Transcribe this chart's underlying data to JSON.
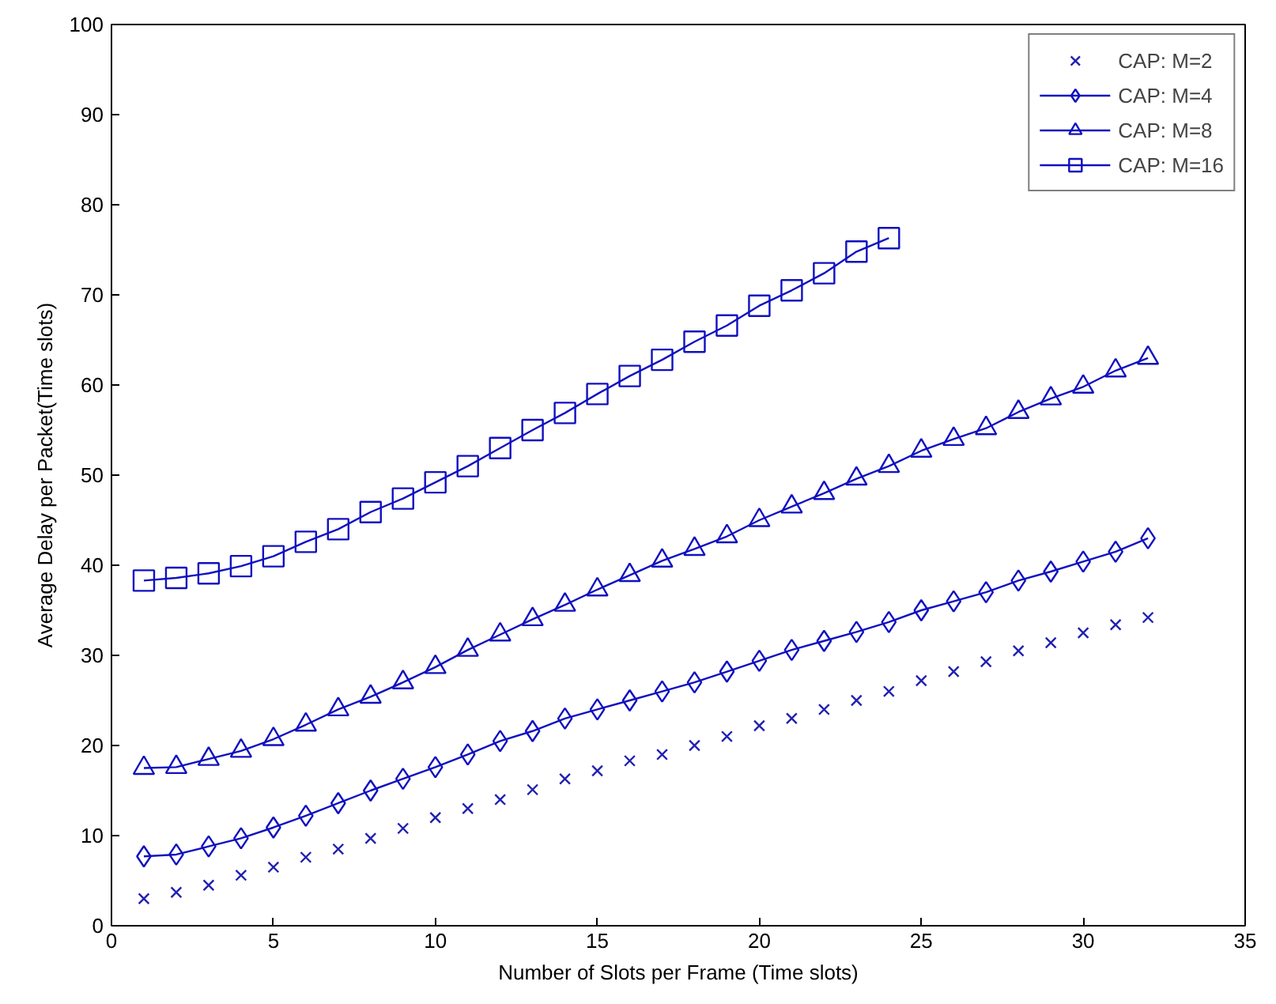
{
  "chart_data": {
    "type": "line",
    "xlabel": "Number of Slots per Frame (Time slots)",
    "ylabel": "Average Delay per Packet(Time slots)",
    "x": [
      1,
      2,
      3,
      4,
      5,
      6,
      7,
      8,
      9,
      10,
      11,
      12,
      13,
      14,
      15,
      16,
      17,
      18,
      19,
      20,
      21,
      22,
      23,
      24,
      25,
      26,
      27,
      28,
      29,
      30,
      31,
      32
    ],
    "series": [
      {
        "name": "CAP: M=2",
        "type": "scatter",
        "marker": "cross",
        "color": "#2020b0",
        "values": [
          3.0,
          3.7,
          4.5,
          5.6,
          6.5,
          7.6,
          8.5,
          9.7,
          10.8,
          12.0,
          13.0,
          14.0,
          15.1,
          16.3,
          17.2,
          18.3,
          19.0,
          20.0,
          21.0,
          22.2,
          23.0,
          24.0,
          25.0,
          26.0,
          27.2,
          28.2,
          29.3,
          30.5,
          31.4,
          32.5,
          33.4,
          34.2
        ]
      },
      {
        "name": "CAP: M=4",
        "marker": "diamond",
        "color": "#1010c0",
        "values": [
          7.7,
          7.9,
          8.8,
          9.7,
          10.9,
          12.2,
          13.6,
          15.0,
          16.3,
          17.6,
          19.0,
          20.5,
          21.6,
          23.0,
          24.0,
          25.0,
          26.0,
          27.0,
          28.2,
          29.4,
          30.6,
          31.6,
          32.6,
          33.7,
          35.0,
          36.0,
          37.0,
          38.3,
          39.3,
          40.4,
          41.5,
          43.0
        ]
      },
      {
        "name": "CAP: M=8",
        "marker": "triangle",
        "color": "#1010c0",
        "values": [
          17.5,
          17.6,
          18.5,
          19.4,
          20.7,
          22.3,
          24.0,
          25.4,
          27.0,
          28.7,
          30.6,
          32.3,
          34.0,
          35.6,
          37.3,
          38.9,
          40.5,
          41.8,
          43.2,
          45.0,
          46.5,
          48.0,
          49.6,
          51.0,
          52.7,
          54.0,
          55.2,
          57.0,
          58.5,
          59.8,
          61.6,
          63.0
        ]
      },
      {
        "name": "CAP: M=16",
        "marker": "square",
        "color": "#1010c0",
        "values": [
          38.3,
          38.6,
          39.1,
          39.9,
          41.0,
          42.6,
          44.0,
          45.9,
          47.4,
          49.2,
          51.0,
          53.0,
          55.0,
          56.9,
          59.0,
          61.0,
          62.8,
          64.8,
          66.6,
          68.8,
          70.5,
          72.4,
          74.8,
          76.3,
          null,
          null,
          null,
          null,
          null,
          null,
          null,
          null
        ]
      }
    ],
    "xlim": [
      0,
      35
    ],
    "xticks": [
      0,
      5,
      10,
      15,
      20,
      25,
      30,
      35
    ],
    "ylim": [
      0,
      100
    ],
    "yticks": [
      0,
      10,
      20,
      30,
      40,
      50,
      60,
      70,
      80,
      90,
      100
    ],
    "grid": false,
    "legend": "top right"
  }
}
